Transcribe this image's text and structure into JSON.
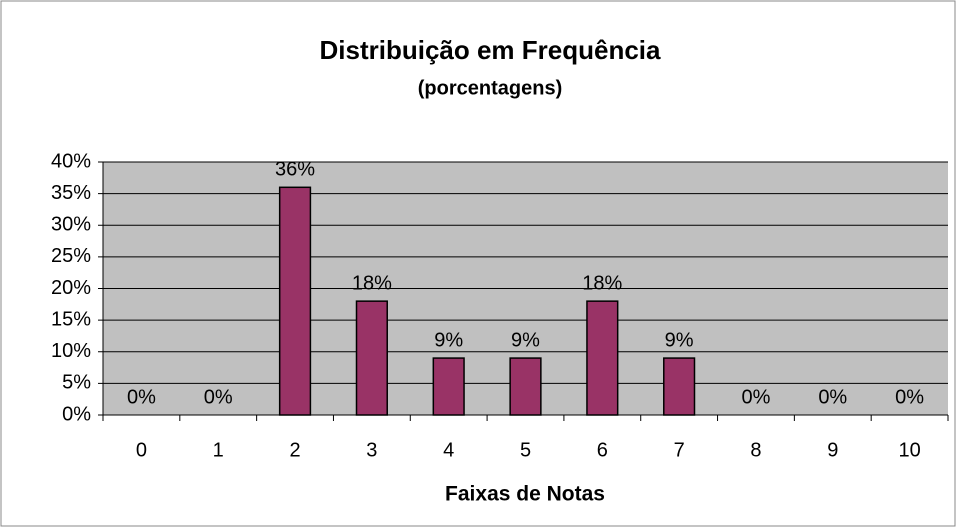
{
  "chart_data": {
    "type": "bar",
    "title": "Distribuição em Frequência",
    "subtitle": "(porcentagens)",
    "x_label": "Faixas de Notas",
    "categories": [
      "0",
      "1",
      "2",
      "3",
      "4",
      "5",
      "6",
      "7",
      "8",
      "9",
      "10"
    ],
    "values": [
      0,
      0,
      36,
      18,
      9,
      9,
      18,
      9,
      0,
      0,
      0
    ],
    "value_labels": [
      "0%",
      "0%",
      "36%",
      "18%",
      "9%",
      "9%",
      "18%",
      "9%",
      "0%",
      "0%",
      "0%"
    ],
    "color": "#993366",
    "ylim": [
      0,
      40
    ],
    "yticks": [
      {
        "value": 0,
        "label": "0%"
      },
      {
        "value": 5,
        "label": "5%"
      },
      {
        "value": 10,
        "label": "10%"
      },
      {
        "value": 15,
        "label": "15%"
      },
      {
        "value": 20,
        "label": "20%"
      },
      {
        "value": 25,
        "label": "25%"
      },
      {
        "value": 30,
        "label": "30%"
      },
      {
        "value": 35,
        "label": "35%"
      },
      {
        "value": 40,
        "label": "40%"
      }
    ],
    "grid": true
  }
}
